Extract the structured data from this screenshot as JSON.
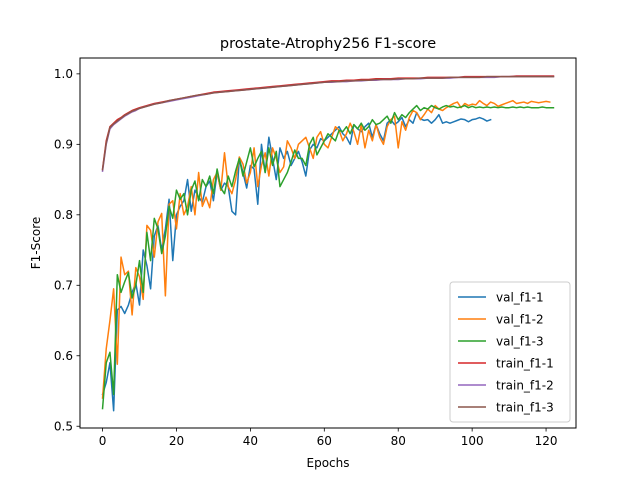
{
  "chart_data": {
    "type": "line",
    "title": "prostate-Atrophy256 F1-score",
    "xlabel": "Epochs",
    "ylabel": "F1-Score",
    "xlim": [
      -6.1,
      128.1
    ],
    "ylim": [
      0.4975,
      1.0225
    ],
    "xticks": [
      0,
      20,
      40,
      60,
      80,
      100,
      120
    ],
    "yticks": [
      0.5,
      0.6,
      0.7,
      0.8,
      0.9,
      1.0
    ],
    "ytick_labels": [
      "0.5",
      "0.6",
      "0.7",
      "0.8",
      "0.9",
      "1.0"
    ],
    "grid": false,
    "legend_position": "lower-right",
    "series": [
      {
        "name": "val_f1-1",
        "color": "#1f77b4",
        "x": [
          0,
          1,
          2,
          3,
          4,
          5,
          6,
          7,
          8,
          9,
          10,
          11,
          12,
          13,
          14,
          15,
          16,
          17,
          18,
          19,
          20,
          21,
          22,
          23,
          24,
          25,
          26,
          27,
          28,
          29,
          30,
          31,
          32,
          33,
          34,
          35,
          36,
          37,
          38,
          39,
          40,
          41,
          42,
          43,
          44,
          45,
          46,
          47,
          48,
          49,
          50,
          51,
          52,
          53,
          54,
          55,
          56,
          57,
          58,
          59,
          60,
          61,
          62,
          63,
          64,
          65,
          66,
          67,
          68,
          69,
          70,
          71,
          72,
          73,
          74,
          75,
          76,
          77,
          78,
          79,
          80,
          81,
          82,
          83,
          84,
          85,
          86,
          87,
          88,
          89,
          90,
          91,
          92,
          93,
          94,
          95,
          96,
          97,
          98,
          99,
          100,
          101,
          102,
          103,
          104,
          105
        ],
        "y": [
          0.545,
          0.562,
          0.59,
          0.522,
          0.665,
          0.67,
          0.66,
          0.672,
          0.69,
          0.703,
          0.672,
          0.75,
          0.728,
          0.695,
          0.77,
          0.785,
          0.75,
          0.78,
          0.822,
          0.735,
          0.8,
          0.812,
          0.82,
          0.85,
          0.805,
          0.835,
          0.825,
          0.818,
          0.84,
          0.848,
          0.82,
          0.86,
          0.835,
          0.845,
          0.84,
          0.805,
          0.8,
          0.88,
          0.86,
          0.838,
          0.87,
          0.865,
          0.815,
          0.9,
          0.86,
          0.91,
          0.88,
          0.85,
          0.895,
          0.88,
          0.89,
          0.87,
          0.88,
          0.89,
          0.875,
          0.855,
          0.892,
          0.9,
          0.895,
          0.908,
          0.905,
          0.91,
          0.915,
          0.92,
          0.925,
          0.915,
          0.91,
          0.9,
          0.928,
          0.922,
          0.918,
          0.925,
          0.93,
          0.91,
          0.928,
          0.915,
          0.905,
          0.93,
          0.935,
          0.928,
          0.932,
          0.938,
          0.925,
          0.935,
          0.93,
          0.945,
          0.936,
          0.934,
          0.935,
          0.93,
          0.935,
          0.942,
          0.93,
          0.932,
          0.93,
          0.932,
          0.934,
          0.936,
          0.935,
          0.932,
          0.935,
          0.936,
          0.938,
          0.936,
          0.933,
          0.935
        ]
      },
      {
        "name": "val_f1-2",
        "color": "#ff7f0e",
        "x": [
          0,
          1,
          2,
          3,
          4,
          5,
          6,
          7,
          8,
          9,
          10,
          11,
          12,
          13,
          14,
          15,
          16,
          17,
          18,
          19,
          20,
          21,
          22,
          23,
          24,
          25,
          26,
          27,
          28,
          29,
          30,
          31,
          32,
          33,
          34,
          35,
          36,
          37,
          38,
          39,
          40,
          41,
          42,
          43,
          44,
          45,
          46,
          47,
          48,
          49,
          50,
          51,
          52,
          53,
          54,
          55,
          56,
          57,
          58,
          59,
          60,
          61,
          62,
          63,
          64,
          65,
          66,
          67,
          68,
          69,
          70,
          71,
          72,
          73,
          74,
          75,
          76,
          77,
          78,
          79,
          80,
          81,
          82,
          83,
          84,
          85,
          86,
          87,
          88,
          89,
          90,
          91,
          92,
          93,
          94,
          95,
          96,
          97,
          98,
          99,
          100,
          101,
          102,
          103,
          104,
          105,
          106,
          107,
          108,
          109,
          110,
          111,
          112,
          113,
          114,
          115,
          116,
          117,
          118,
          119,
          120,
          121
        ],
        "y": [
          0.54,
          0.61,
          0.65,
          0.695,
          0.588,
          0.74,
          0.715,
          0.72,
          0.658,
          0.725,
          0.712,
          0.68,
          0.785,
          0.778,
          0.74,
          0.79,
          0.802,
          0.685,
          0.815,
          0.82,
          0.78,
          0.83,
          0.8,
          0.812,
          0.84,
          0.8,
          0.86,
          0.812,
          0.825,
          0.81,
          0.85,
          0.86,
          0.835,
          0.888,
          0.84,
          0.83,
          0.85,
          0.882,
          0.872,
          0.845,
          0.86,
          0.895,
          0.84,
          0.87,
          0.888,
          0.855,
          0.895,
          0.88,
          0.86,
          0.868,
          0.905,
          0.895,
          0.88,
          0.9,
          0.905,
          0.91,
          0.895,
          0.88,
          0.91,
          0.918,
          0.9,
          0.895,
          0.91,
          0.925,
          0.92,
          0.905,
          0.915,
          0.93,
          0.918,
          0.9,
          0.928,
          0.895,
          0.92,
          0.905,
          0.928,
          0.91,
          0.9,
          0.925,
          0.935,
          0.94,
          0.895,
          0.932,
          0.92,
          0.938,
          0.948,
          0.945,
          0.935,
          0.942,
          0.95,
          0.945,
          0.955,
          0.95,
          0.948,
          0.952,
          0.955,
          0.958,
          0.96,
          0.952,
          0.958,
          0.955,
          0.957,
          0.956,
          0.962,
          0.958,
          0.955,
          0.96,
          0.958,
          0.954,
          0.956,
          0.958,
          0.96,
          0.962,
          0.958,
          0.959,
          0.96,
          0.958,
          0.961,
          0.96,
          0.959,
          0.96,
          0.961,
          0.96
        ]
      },
      {
        "name": "val_f1-3",
        "color": "#2ca02c",
        "x": [
          0,
          1,
          2,
          3,
          4,
          5,
          6,
          7,
          8,
          9,
          10,
          11,
          12,
          13,
          14,
          15,
          16,
          17,
          18,
          19,
          20,
          21,
          22,
          23,
          24,
          25,
          26,
          27,
          28,
          29,
          30,
          31,
          32,
          33,
          34,
          35,
          36,
          37,
          38,
          39,
          40,
          41,
          42,
          43,
          44,
          45,
          46,
          47,
          48,
          49,
          50,
          51,
          52,
          53,
          54,
          55,
          56,
          57,
          58,
          59,
          60,
          61,
          62,
          63,
          64,
          65,
          66,
          67,
          68,
          69,
          70,
          71,
          72,
          73,
          74,
          75,
          76,
          77,
          78,
          79,
          80,
          81,
          82,
          83,
          84,
          85,
          86,
          87,
          88,
          89,
          90,
          91,
          92,
          93,
          94,
          95,
          96,
          97,
          98,
          99,
          100,
          101,
          102,
          103,
          104,
          105,
          106,
          107,
          108,
          109,
          110,
          111,
          112,
          113,
          114,
          115,
          116,
          117,
          118,
          119,
          120,
          121,
          122
        ],
        "y": [
          0.525,
          0.59,
          0.605,
          0.545,
          0.715,
          0.69,
          0.705,
          0.718,
          0.682,
          0.7,
          0.735,
          0.69,
          0.775,
          0.735,
          0.795,
          0.78,
          0.745,
          0.77,
          0.812,
          0.795,
          0.835,
          0.822,
          0.83,
          0.8,
          0.835,
          0.848,
          0.82,
          0.85,
          0.84,
          0.855,
          0.83,
          0.865,
          0.838,
          0.83,
          0.855,
          0.84,
          0.862,
          0.88,
          0.855,
          0.875,
          0.895,
          0.868,
          0.88,
          0.89,
          0.86,
          0.895,
          0.87,
          0.89,
          0.84,
          0.85,
          0.86,
          0.875,
          0.892,
          0.88,
          0.88,
          0.87,
          0.9,
          0.91,
          0.885,
          0.895,
          0.905,
          0.915,
          0.91,
          0.905,
          0.92,
          0.918,
          0.925,
          0.915,
          0.928,
          0.922,
          0.93,
          0.92,
          0.925,
          0.935,
          0.928,
          0.93,
          0.935,
          0.94,
          0.93,
          0.945,
          0.935,
          0.942,
          0.938,
          0.945,
          0.95,
          0.955,
          0.948,
          0.952,
          0.95,
          0.955,
          0.952,
          0.95,
          0.953,
          0.955,
          0.953,
          0.954,
          0.952,
          0.953,
          0.955,
          0.952,
          0.954,
          0.952,
          0.953,
          0.952,
          0.953,
          0.952,
          0.953,
          0.952,
          0.953,
          0.952,
          0.952,
          0.953,
          0.952,
          0.953,
          0.952,
          0.953,
          0.952,
          0.952,
          0.952,
          0.953,
          0.952,
          0.952,
          0.952
        ]
      },
      {
        "name": "train_f1-1",
        "color": "#d62728",
        "x": [
          0,
          1,
          2,
          3,
          4,
          5,
          6,
          7,
          8,
          9,
          10,
          12,
          14,
          16,
          18,
          20,
          22,
          24,
          26,
          28,
          30,
          32,
          34,
          36,
          38,
          40,
          42,
          44,
          46,
          48,
          50,
          52,
          54,
          56,
          58,
          60,
          62,
          64,
          66,
          68,
          70,
          72,
          74,
          76,
          78,
          80,
          82,
          84,
          86,
          88,
          90,
          92,
          94,
          96,
          98,
          100,
          102,
          104,
          106,
          108,
          110,
          112,
          114,
          116,
          118,
          120,
          122
        ],
        "y": [
          0.865,
          0.905,
          0.925,
          0.93,
          0.935,
          0.938,
          0.942,
          0.945,
          0.948,
          0.95,
          0.952,
          0.955,
          0.958,
          0.96,
          0.962,
          0.964,
          0.966,
          0.968,
          0.97,
          0.972,
          0.974,
          0.975,
          0.976,
          0.977,
          0.978,
          0.979,
          0.98,
          0.981,
          0.982,
          0.983,
          0.984,
          0.985,
          0.986,
          0.987,
          0.988,
          0.989,
          0.99,
          0.99,
          0.991,
          0.991,
          0.992,
          0.992,
          0.993,
          0.993,
          0.993,
          0.994,
          0.994,
          0.994,
          0.994,
          0.995,
          0.995,
          0.995,
          0.995,
          0.995,
          0.996,
          0.996,
          0.996,
          0.996,
          0.996,
          0.996,
          0.996,
          0.997,
          0.997,
          0.997,
          0.997,
          0.997,
          0.997
        ]
      },
      {
        "name": "train_f1-2",
        "color": "#9467bd",
        "x": [
          0,
          1,
          2,
          3,
          4,
          5,
          6,
          7,
          8,
          9,
          10,
          12,
          14,
          16,
          18,
          20,
          22,
          24,
          26,
          28,
          30,
          32,
          34,
          36,
          38,
          40,
          42,
          44,
          46,
          48,
          50,
          52,
          54,
          56,
          58,
          60,
          62,
          64,
          66,
          68,
          70,
          72,
          74,
          76,
          78,
          80,
          82,
          84,
          86,
          88,
          90,
          92,
          94,
          96,
          98,
          100,
          102,
          104,
          106,
          108,
          110,
          112,
          114,
          116,
          118,
          120,
          122
        ],
        "y": [
          0.862,
          0.9,
          0.922,
          0.928,
          0.932,
          0.936,
          0.94,
          0.943,
          0.946,
          0.948,
          0.951,
          0.954,
          0.957,
          0.959,
          0.961,
          0.963,
          0.965,
          0.967,
          0.969,
          0.971,
          0.973,
          0.974,
          0.975,
          0.976,
          0.977,
          0.978,
          0.979,
          0.98,
          0.981,
          0.982,
          0.983,
          0.984,
          0.985,
          0.986,
          0.987,
          0.988,
          0.988,
          0.989,
          0.989,
          0.99,
          0.99,
          0.991,
          0.991,
          0.992,
          0.992,
          0.992,
          0.993,
          0.993,
          0.993,
          0.994,
          0.994,
          0.994,
          0.994,
          0.995,
          0.995,
          0.995,
          0.995,
          0.995,
          0.995,
          0.996,
          0.996,
          0.996,
          0.996,
          0.996,
          0.996,
          0.996,
          0.996
        ]
      },
      {
        "name": "train_f1-3",
        "color": "#8c564b",
        "x": [
          0,
          1,
          2,
          3,
          4,
          5,
          6,
          7,
          8,
          9,
          10,
          12,
          14,
          16,
          18,
          20,
          22,
          24,
          26,
          28,
          30,
          32,
          34,
          36,
          38,
          40,
          42,
          44,
          46,
          48,
          50,
          52,
          54,
          56,
          58,
          60,
          62,
          64,
          66,
          68,
          70,
          72,
          74,
          76,
          78,
          80,
          82,
          84,
          86,
          88,
          90,
          92,
          94,
          96,
          98,
          100,
          102,
          104,
          106,
          108,
          110,
          112,
          114,
          116,
          118,
          120,
          122
        ],
        "y": [
          0.864,
          0.902,
          0.924,
          0.929,
          0.933,
          0.937,
          0.941,
          0.944,
          0.947,
          0.949,
          0.951,
          0.954,
          0.957,
          0.959,
          0.962,
          0.964,
          0.966,
          0.968,
          0.97,
          0.971,
          0.973,
          0.974,
          0.975,
          0.976,
          0.977,
          0.978,
          0.979,
          0.98,
          0.981,
          0.982,
          0.983,
          0.984,
          0.985,
          0.986,
          0.987,
          0.988,
          0.989,
          0.989,
          0.99,
          0.99,
          0.991,
          0.991,
          0.992,
          0.992,
          0.992,
          0.993,
          0.993,
          0.993,
          0.994,
          0.994,
          0.994,
          0.994,
          0.995,
          0.995,
          0.995,
          0.995,
          0.995,
          0.996,
          0.996,
          0.996,
          0.996,
          0.996,
          0.996,
          0.996,
          0.996,
          0.996,
          0.996
        ]
      }
    ]
  }
}
